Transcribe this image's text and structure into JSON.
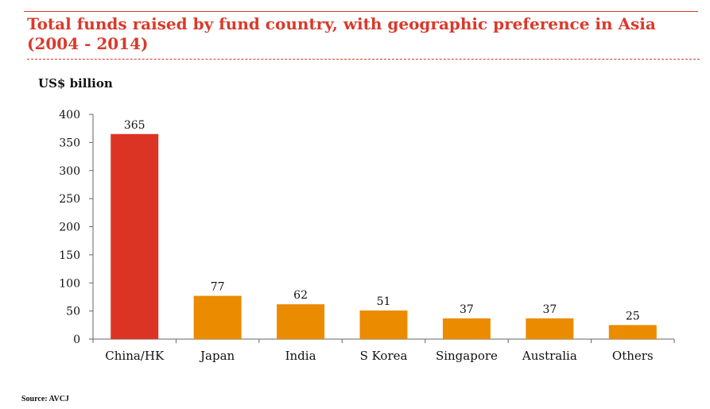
{
  "header": {
    "title": "Total funds raised by fund country, with geographic preference in Asia (2004 - 2014)"
  },
  "unit_label": "US$ billion",
  "footer": {
    "source": "Source: AVCJ"
  },
  "colors": {
    "accent_red": "#d93a2b",
    "highlight_bar": "#dc3424",
    "bar": "#eb8c00",
    "axis": "#666666"
  },
  "chart_data": {
    "type": "bar",
    "title": "Total funds raised by fund country, with geographic preference in Asia (2004 - 2014)",
    "ylabel": "US$ billion",
    "categories": [
      "China/HK",
      "Japan",
      "India",
      "S Korea",
      "Singapore",
      "Australia",
      "Others"
    ],
    "values": [
      365,
      77,
      62,
      51,
      37,
      37,
      25
    ],
    "ylim": [
      0,
      400
    ],
    "yticks": [
      0,
      50,
      100,
      150,
      200,
      250,
      300,
      350,
      400
    ],
    "highlight_index": 0,
    "grid": false,
    "legend": "none"
  }
}
